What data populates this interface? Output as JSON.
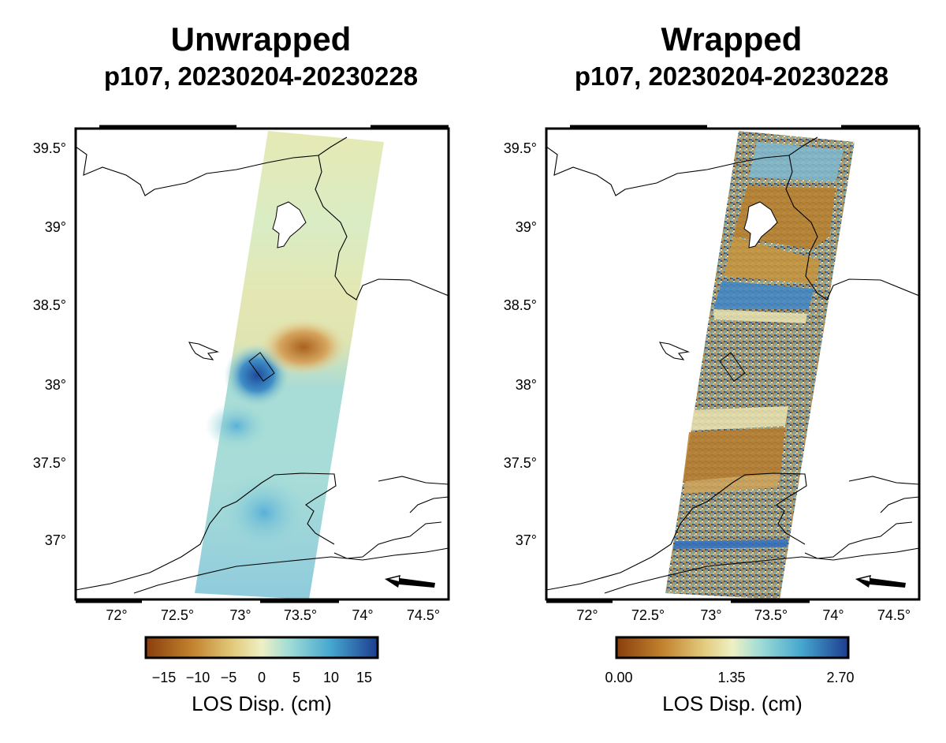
{
  "panels": [
    {
      "id": "unwrapped",
      "title": "Unwrapped",
      "subtitle": "p107, 20230204-20230228",
      "lat_ticks": [
        "39.5°",
        "39°",
        "38.5°",
        "38°",
        "37.5°",
        "37°"
      ],
      "lon_ticks": [
        "72°",
        "72.5°",
        "73°",
        "73.5°",
        "74°",
        "74.5°"
      ],
      "colorbar": {
        "label": "LOS Disp. (cm)",
        "ticks": [
          "−15",
          "−10",
          "−5",
          "0",
          "5",
          "10",
          "15"
        ],
        "range": [
          -17,
          17
        ]
      }
    },
    {
      "id": "wrapped",
      "title": "Wrapped",
      "subtitle": "p107, 20230204-20230228",
      "lat_ticks": [
        "39.5°",
        "39°",
        "38.5°",
        "38°",
        "37.5°",
        "37°"
      ],
      "lon_ticks": [
        "72°",
        "72.5°",
        "73°",
        "73.5°",
        "74°",
        "74.5°"
      ],
      "colorbar": {
        "label": "LOS Disp. (cm)",
        "ticks": [
          "0.00",
          "1.35",
          "2.70"
        ],
        "range": [
          0,
          2.83
        ]
      }
    }
  ],
  "map_extent": {
    "lon_min": 71.67,
    "lon_max": 74.68,
    "lat_min": 36.63,
    "lat_max": 39.64
  },
  "colors": {
    "neg": "#8b4a10",
    "mid_neg": "#d4a94a",
    "zero": "#eef0c4",
    "mid_pos": "#6bc6cf",
    "pos": "#1f3f92",
    "frame": "#000000",
    "border": "#000000"
  },
  "los_arrow": "ascending-los-arrow"
}
